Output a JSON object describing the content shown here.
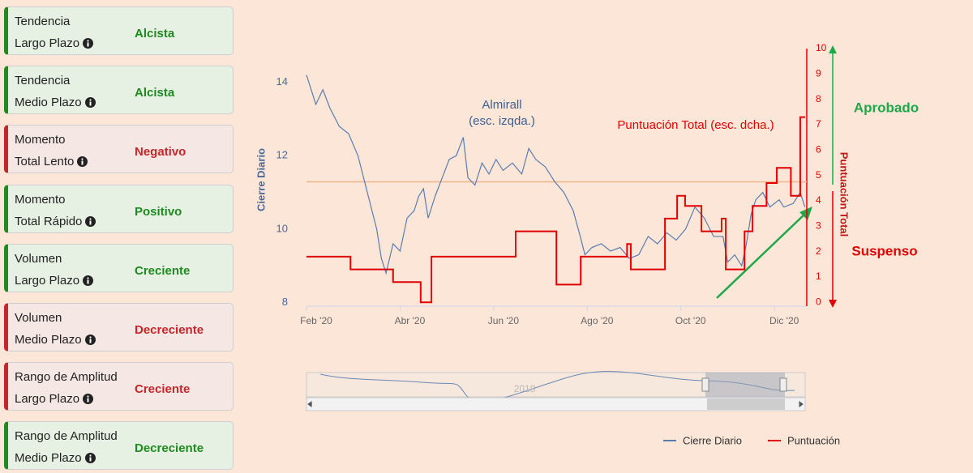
{
  "cards": [
    {
      "line1": "Tendencia",
      "line2": "Largo Plazo",
      "status": "Alcista",
      "color": "#1f8a1f"
    },
    {
      "line1": "Tendencia",
      "line2": "Medio Plazo",
      "status": "Alcista",
      "color": "#1f8a1f"
    },
    {
      "line1": "Momento",
      "line2": "Total Lento",
      "status": "Negativo",
      "color": "#c4262b"
    },
    {
      "line1": "Momento",
      "line2": "Total Rápido",
      "status": "Positivo",
      "color": "#1f8a1f"
    },
    {
      "line1": "Volumen",
      "line2": "Largo Plazo",
      "status": "Creciente",
      "color": "#1f8a1f"
    },
    {
      "line1": "Volumen",
      "line2": "Medio Plazo",
      "status": "Decreciente",
      "color": "#c4262b"
    },
    {
      "line1": "Rango de Amplitud",
      "line2": "Largo Plazo",
      "status": "Creciente",
      "color": "#c4262b"
    },
    {
      "line1": "Rango de Amplitud",
      "line2": "Medio Plazo",
      "status": "Decreciente",
      "color": "#1f8a1f"
    }
  ],
  "chart_data": {
    "type": "line",
    "ylabel": "Cierre Diario",
    "y2label": "Puntuación Total",
    "annotations": {
      "name": "Almirall",
      "name_note": "(esc. izqda.)",
      "score_note": "Puntuación Total (esc. dcha.)",
      "pass": "Aprobado",
      "fail": "Suspenso"
    },
    "navigator_label": "2018",
    "xlim": [
      2,
      12.69
    ],
    "xticks": [
      {
        "value": 2,
        "label": "Feb '20"
      },
      {
        "value": 4,
        "label": "Abr '20"
      },
      {
        "value": 6,
        "label": "Jun '20"
      },
      {
        "value": 8,
        "label": "Ago '20"
      },
      {
        "value": 10,
        "label": "Oct '20"
      },
      {
        "value": 12,
        "label": "Dic '20"
      }
    ],
    "ylim": [
      7.9,
      14.92
    ],
    "yticks": [
      8,
      10,
      12,
      14
    ],
    "y2lim": [
      -0.15,
      10
    ],
    "y2ticks": [
      0,
      1,
      2,
      3,
      4,
      5,
      6,
      7,
      8,
      9,
      10
    ],
    "threshold": 4.75,
    "threshold_color": "#f0b48a",
    "series": [
      {
        "name": "Cierre Diario",
        "color": "#5a7db0",
        "x": [
          2.0,
          2.1,
          2.2,
          2.35,
          2.5,
          2.7,
          2.9,
          3.1,
          3.3,
          3.5,
          3.6,
          3.7,
          3.85,
          4.0,
          4.15,
          4.3,
          4.4,
          4.5,
          4.6,
          4.75,
          4.9,
          5.05,
          5.2,
          5.35,
          5.45,
          5.6,
          5.75,
          5.9,
          6.05,
          6.2,
          6.4,
          6.6,
          6.75,
          6.9,
          7.1,
          7.3,
          7.5,
          7.7,
          7.85,
          7.95,
          8.1,
          8.3,
          8.5,
          8.7,
          8.9,
          9.1,
          9.3,
          9.5,
          9.7,
          9.9,
          10.1,
          10.3,
          10.5,
          10.7,
          10.9,
          11.0,
          11.15,
          11.3,
          11.4,
          11.5,
          11.6,
          11.75,
          11.9,
          12.1,
          12.2,
          12.4,
          12.55,
          12.65
        ],
        "values": [
          14.2,
          13.8,
          13.4,
          13.8,
          13.3,
          12.8,
          12.6,
          12.0,
          11.0,
          10.0,
          9.2,
          8.8,
          9.6,
          9.4,
          10.3,
          10.5,
          10.9,
          11.1,
          10.3,
          10.9,
          11.4,
          11.9,
          12.0,
          12.5,
          11.4,
          11.2,
          11.8,
          11.5,
          11.9,
          11.6,
          11.8,
          11.5,
          12.2,
          11.9,
          11.7,
          11.3,
          11.0,
          10.5,
          9.8,
          9.3,
          9.5,
          9.6,
          9.4,
          9.5,
          9.2,
          9.3,
          9.8,
          9.6,
          9.9,
          9.7,
          10.0,
          10.6,
          10.3,
          9.8,
          9.8,
          9.1,
          9.3,
          9.0,
          9.6,
          10.4,
          10.8,
          11.0,
          10.6,
          10.8,
          10.6,
          10.7,
          11.0,
          10.6
        ]
      },
      {
        "name": "Puntuación",
        "color": "#e00000",
        "axis": "y2",
        "step": true,
        "x": [
          2,
          2.94,
          3.85,
          4.44,
          4.67,
          6.47,
          7.34,
          7.86,
          8.85,
          8.93,
          9.66,
          9.92,
          10.09,
          10.44,
          10.87,
          10.96,
          11.36,
          11.53,
          11.83,
          12.05,
          12.35,
          12.55
        ],
        "values": [
          1.8,
          1.3,
          0.8,
          0,
          1.8,
          2.8,
          0.7,
          1.8,
          2.3,
          1.3,
          3.3,
          4.2,
          3.8,
          2.8,
          3.3,
          1.3,
          2.8,
          3.8,
          4.7,
          5.3,
          4.2,
          7.3
        ]
      }
    ]
  }
}
